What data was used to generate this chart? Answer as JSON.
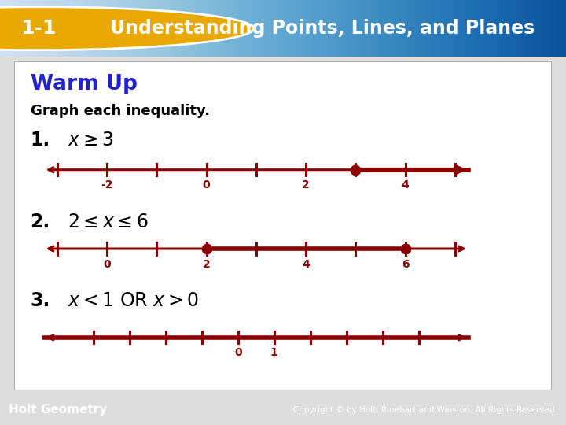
{
  "title_badge": "1-1",
  "title_text": "Understanding Points, Lines, and Planes",
  "header_bg_left": "#1A6FB5",
  "header_bg_right": "#5BB8E8",
  "badge_bg": "#E8A800",
  "warm_up_text": "Warm Up",
  "warm_up_color": "#2222CC",
  "subtitle_text": "Graph each inequality.",
  "number_line_color": "#8B0000",
  "footer_bg": "#1A6FB5",
  "footer_text": "Holt Geometry",
  "footer_right": "Copyright © by Holt, Rinehart and Winston. All Rights Reserved.",
  "lw_base": 2.2,
  "lw_thick": 4.0,
  "dot_size": 9
}
